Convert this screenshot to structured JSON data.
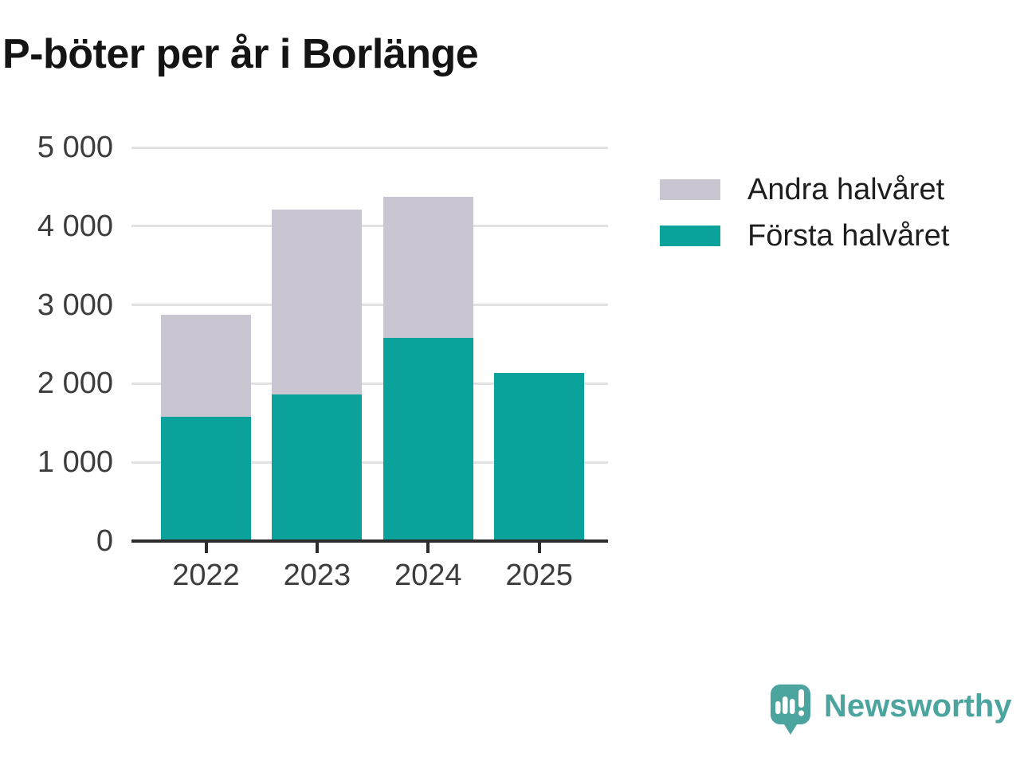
{
  "title": "P-böter per år i Borlänge",
  "chart_data": {
    "type": "bar",
    "stacked": true,
    "title": "P-böter per år i Borlänge",
    "categories": [
      "2022",
      "2023",
      "2024",
      "2025"
    ],
    "series": [
      {
        "name": "Första halvåret",
        "color": "#0aa29a",
        "values": [
          1575,
          1860,
          2580,
          2140
        ]
      },
      {
        "name": "Andra halvåret",
        "color": "#c9c6d2",
        "values": [
          1295,
          2350,
          1790,
          0
        ]
      }
    ],
    "totals": [
      2870,
      4210,
      4370,
      2140
    ],
    "xlabel": "",
    "ylabel": "",
    "ylim": [
      0,
      5000
    ],
    "yticks": [
      0,
      1000,
      2000,
      3000,
      4000,
      5000
    ],
    "ytick_labels": [
      "0",
      "1 000",
      "2 000",
      "3 000",
      "4 000",
      "5 000"
    ],
    "grid": "horizontal",
    "legend_position": "right-top"
  },
  "legend": {
    "items": [
      {
        "label": "Andra halvåret",
        "color": "#c9c6d2"
      },
      {
        "label": "Första halvåret",
        "color": "#0aa29a"
      }
    ]
  },
  "branding": {
    "logo_text": "Newsworthy",
    "logo_color": "#4ba49e"
  },
  "colors": {
    "first_half": "#0aa29a",
    "second_half": "#c9c6d2",
    "gridline": "#e2e1e4",
    "axis": "#2d2d2d",
    "tick_label": "#3c3c3c",
    "title": "#141414"
  }
}
